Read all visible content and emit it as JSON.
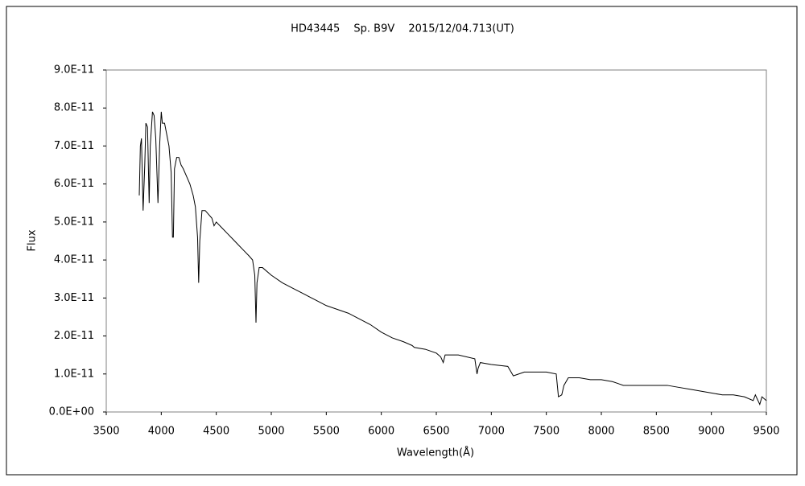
{
  "chart_data": {
    "type": "line",
    "title": "HD43445　 Sp. B9V　 2015/12/04.713(UT)",
    "x_label": "Wavelength(Å)",
    "y_label": "Flux",
    "xlim": [
      3500,
      9500
    ],
    "ylim": [
      0,
      9e-11
    ],
    "xticks": [
      3500,
      4000,
      4500,
      5000,
      5500,
      6000,
      6500,
      7000,
      7500,
      8000,
      8500,
      9000,
      9500
    ],
    "yticks": [
      {
        "value": 0,
        "label": "0.0E+00"
      },
      {
        "value": 1e-11,
        "label": "1.0E-11"
      },
      {
        "value": 2e-11,
        "label": "2.0E-11"
      },
      {
        "value": 3e-11,
        "label": "3.0E-11"
      },
      {
        "value": 4e-11,
        "label": "4.0E-11"
      },
      {
        "value": 5e-11,
        "label": "5.0E-11"
      },
      {
        "value": 6e-11,
        "label": "6.0E-11"
      },
      {
        "value": 7e-11,
        "label": "7.0E-11"
      },
      {
        "value": 8e-11,
        "label": "8.0E-11"
      },
      {
        "value": 9e-11,
        "label": "9.0E-11"
      }
    ],
    "color": "#000000",
    "x": [
      3800,
      3810,
      3820,
      3835,
      3850,
      3860,
      3875,
      3890,
      3900,
      3920,
      3935,
      3950,
      3970,
      3985,
      4000,
      4010,
      4030,
      4050,
      4070,
      4090,
      4102,
      4110,
      4120,
      4140,
      4160,
      4180,
      4200,
      4230,
      4260,
      4290,
      4310,
      4330,
      4340,
      4350,
      4370,
      4400,
      4430,
      4460,
      4480,
      4500,
      4550,
      4600,
      4650,
      4700,
      4750,
      4800,
      4830,
      4850,
      4861,
      4870,
      4890,
      4920,
      5000,
      5100,
      5200,
      5300,
      5400,
      5500,
      5600,
      5700,
      5800,
      5900,
      6000,
      6100,
      6200,
      6280,
      6300,
      6400,
      6500,
      6540,
      6563,
      6580,
      6700,
      6850,
      6870,
      6880,
      6900,
      7000,
      7150,
      7200,
      7250,
      7300,
      7500,
      7590,
      7610,
      7640,
      7660,
      7700,
      7800,
      7900,
      8000,
      8100,
      8150,
      8200,
      8400,
      8600,
      8700,
      8800,
      8900,
      9000,
      9100,
      9200,
      9300,
      9380,
      9400,
      9440,
      9460,
      9500
    ],
    "values": [
      5.7e-11,
      7e-11,
      7.2e-11,
      5.3e-11,
      6.5e-11,
      7.6e-11,
      7.5e-11,
      5.5e-11,
      7e-11,
      7.9e-11,
      7.8e-11,
      7.2e-11,
      5.5e-11,
      7e-11,
      7.9e-11,
      7.6e-11,
      7.6e-11,
      7.3e-11,
      7e-11,
      6.3e-11,
      4.6e-11,
      4.6e-11,
      6.4e-11,
      6.7e-11,
      6.7e-11,
      6.5e-11,
      6.4e-11,
      6.2e-11,
      6e-11,
      5.7e-11,
      5.4e-11,
      4.6e-11,
      3.4e-11,
      4.5e-11,
      5.3e-11,
      5.3e-11,
      5.2e-11,
      5.1e-11,
      4.9e-11,
      5e-11,
      4.85e-11,
      4.7e-11,
      4.55e-11,
      4.4e-11,
      4.25e-11,
      4.1e-11,
      4e-11,
      3.6e-11,
      2.35e-11,
      3.4e-11,
      3.8e-11,
      3.8e-11,
      3.6e-11,
      3.4e-11,
      3.25e-11,
      3.1e-11,
      2.95e-11,
      2.8e-11,
      2.7e-11,
      2.6e-11,
      2.45e-11,
      2.3e-11,
      2.1e-11,
      1.95e-11,
      1.85e-11,
      1.75e-11,
      1.7e-11,
      1.65e-11,
      1.55e-11,
      1.45e-11,
      1.3e-11,
      1.5e-11,
      1.5e-11,
      1.4e-11,
      1e-11,
      1.15e-11,
      1.3e-11,
      1.25e-11,
      1.2e-11,
      9.5e-12,
      1e-11,
      1.05e-11,
      1.05e-11,
      1e-11,
      4e-12,
      4.5e-12,
      7e-12,
      9e-12,
      9e-12,
      8.5e-12,
      8.5e-12,
      8e-12,
      7.5e-12,
      7e-12,
      7e-12,
      7e-12,
      6.5e-12,
      6e-12,
      5.5e-12,
      5e-12,
      4.5e-12,
      4.5e-12,
      4e-12,
      3e-12,
      4.5e-12,
      2e-12,
      4e-12,
      3e-12
    ]
  }
}
